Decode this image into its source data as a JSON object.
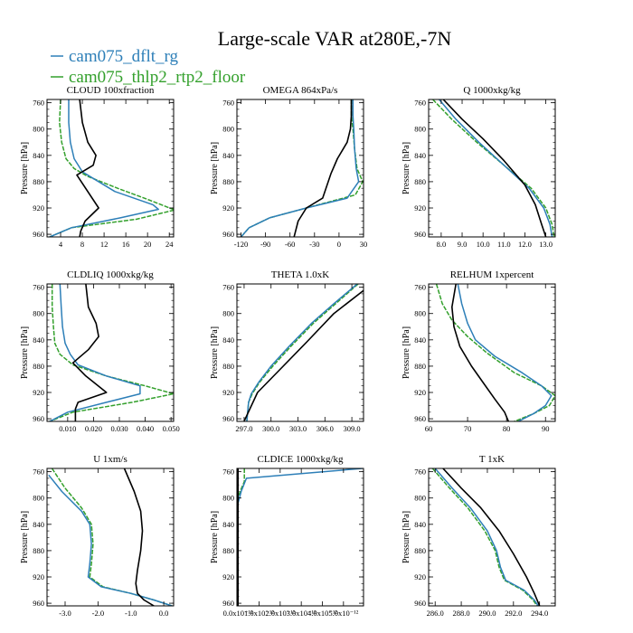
{
  "title": "Large-scale VAR at280E,-7N",
  "legend": [
    {
      "label": "cam075_dflt_rg",
      "color": "#2d7fb8"
    },
    {
      "label": "cam075_thlp2_rtp2_floor",
      "color": "#33a02c"
    }
  ],
  "colors": {
    "observed": "#000000",
    "dflt": "#2d7fb8",
    "thlp2": "#33a02c"
  },
  "chart_data": [
    {
      "type": "line",
      "title": "CLOUD  100xfraction",
      "ylabel": "Pressure [hPa]",
      "xlim": [
        1.5,
        24.8
      ],
      "ylim": [
        964,
        755
      ],
      "ylog": false,
      "xticks": [
        4,
        8,
        12,
        16,
        20,
        24
      ],
      "xtick_labels": [
        "4",
        "8",
        "12",
        "16",
        "20",
        "24"
      ],
      "yticks": [
        760,
        800,
        840,
        880,
        920,
        960
      ],
      "ytick_labels": [
        "760",
        "800",
        "840",
        "880",
        "920",
        "960"
      ],
      "series": [
        {
          "key": "observed",
          "x": [
            7.5,
            8.0,
            9.0,
            10.5,
            10.0,
            7.0,
            11.0,
            8.5,
            7.7,
            7.5
          ],
          "y": [
            755,
            790,
            820,
            840,
            855,
            870,
            920,
            940,
            955,
            964
          ]
        },
        {
          "key": "dflt",
          "x": [
            5.5,
            5.5,
            5.8,
            6.5,
            8.0,
            10.0,
            14.0,
            21.0,
            22.0,
            15.0,
            6.0,
            2.0
          ],
          "y": [
            755,
            790,
            820,
            845,
            865,
            875,
            895,
            915,
            922,
            935,
            950,
            964
          ]
        },
        {
          "key": "thlp2",
          "x": [
            4.0,
            3.8,
            4.2,
            5.0,
            6.5,
            9.0,
            14.5,
            20.0,
            25.0,
            18.0,
            6.0,
            2.0
          ],
          "y": [
            755,
            790,
            820,
            845,
            860,
            872,
            890,
            907,
            923,
            937,
            950,
            964
          ]
        }
      ]
    },
    {
      "type": "line",
      "title": "OMEGA  864xPa/s",
      "ylabel": "Pressure [hPa]",
      "xlim": [
        -125,
        30
      ],
      "ylim": [
        964,
        755
      ],
      "ylog": false,
      "xticks": [
        -120,
        -90,
        -60,
        -30,
        0,
        30
      ],
      "xtick_labels": [
        "-120",
        "-90",
        "-60",
        "-30",
        "0",
        "30"
      ],
      "yticks": [
        760,
        800,
        840,
        880,
        920,
        960
      ],
      "ytick_labels": [
        "760",
        "800",
        "840",
        "880",
        "920",
        "960"
      ],
      "series": [
        {
          "key": "observed",
          "x": [
            15.0,
            15.0,
            14.0,
            10.0,
            -2.0,
            -10.0,
            -20.0,
            -40.0,
            -50.0,
            -55.0
          ],
          "y": [
            755,
            780,
            800,
            820,
            845,
            868,
            905,
            920,
            940,
            964
          ]
        },
        {
          "key": "dflt",
          "x": [
            17.0,
            17.0,
            18.0,
            19.0,
            21.0,
            24.0,
            10.0,
            -40.0,
            -85.0,
            -110.0,
            -120.0
          ],
          "y": [
            755,
            780,
            800,
            830,
            860,
            880,
            905,
            920,
            935,
            950,
            964
          ]
        },
        {
          "key": "thlp2",
          "x": [
            15.0,
            15.0,
            17.0,
            19.0,
            22.0,
            29.0,
            20.0,
            -40.0,
            -85.0,
            -110.0,
            -120.0
          ],
          "y": [
            755,
            780,
            800,
            830,
            860,
            880,
            900,
            920,
            935,
            950,
            964
          ]
        }
      ]
    },
    {
      "type": "line",
      "title": "Q  1000xkg/kg",
      "ylabel": "Pressure [hPa]",
      "xlim": [
        7.4,
        13.45
      ],
      "ylim": [
        964,
        755
      ],
      "ylog": false,
      "xticks": [
        8.0,
        9.0,
        10.0,
        11.0,
        12.0,
        13.0
      ],
      "xtick_labels": [
        "8.0",
        "9.0",
        "10.0",
        "11.0",
        "12.0",
        "13.0"
      ],
      "yticks": [
        760,
        800,
        840,
        880,
        920,
        960
      ],
      "ytick_labels": [
        "760",
        "800",
        "840",
        "880",
        "920",
        "960"
      ],
      "series": [
        {
          "key": "observed",
          "x": [
            8.1,
            9.0,
            10.0,
            11.0,
            12.0,
            12.5,
            12.8,
            13.0
          ],
          "y": [
            755,
            785,
            815,
            848,
            885,
            915,
            945,
            964
          ]
        },
        {
          "key": "dflt",
          "x": [
            7.9,
            8.7,
            9.8,
            11.0,
            12.2,
            12.9,
            13.2,
            13.3
          ],
          "y": [
            755,
            785,
            820,
            855,
            890,
            920,
            945,
            964
          ]
        },
        {
          "key": "thlp2",
          "x": [
            7.6,
            8.5,
            9.7,
            11.0,
            12.3,
            13.0,
            13.3,
            13.4
          ],
          "y": [
            755,
            785,
            820,
            855,
            890,
            920,
            945,
            964
          ]
        }
      ]
    },
    {
      "type": "line",
      "title": "CLDLIQ  1000xkg/kg",
      "ylabel": "Pressure [hPa]",
      "xlim": [
        0.002,
        0.051
      ],
      "ylim": [
        964,
        755
      ],
      "ylog": false,
      "xticks": [
        0.01,
        0.02,
        0.03,
        0.04,
        0.05
      ],
      "xtick_labels": [
        "0.010",
        "0.020",
        "0.030",
        "0.040",
        "0.050"
      ],
      "yticks": [
        760,
        800,
        840,
        880,
        920,
        960
      ],
      "ytick_labels": [
        "760",
        "800",
        "840",
        "880",
        "920",
        "960"
      ],
      "series": [
        {
          "key": "observed",
          "x": [
            0.017,
            0.018,
            0.021,
            0.022,
            0.018,
            0.012,
            0.017,
            0.025,
            0.014,
            0.013,
            0.013
          ],
          "y": [
            755,
            790,
            815,
            835,
            855,
            875,
            895,
            920,
            935,
            945,
            964
          ]
        },
        {
          "key": "dflt",
          "x": [
            0.007,
            0.0075,
            0.008,
            0.009,
            0.011,
            0.014,
            0.025,
            0.038,
            0.038,
            0.025,
            0.01,
            0.003
          ],
          "y": [
            755,
            790,
            820,
            845,
            862,
            878,
            895,
            910,
            922,
            935,
            950,
            964
          ]
        },
        {
          "key": "thlp2",
          "x": [
            0.004,
            0.004,
            0.0045,
            0.005,
            0.007,
            0.012,
            0.025,
            0.04,
            0.051,
            0.035,
            0.012,
            0.003
          ],
          "y": [
            755,
            790,
            820,
            845,
            862,
            878,
            895,
            910,
            922,
            935,
            950,
            964
          ]
        }
      ]
    },
    {
      "type": "line",
      "title": "THETA  1.0xK",
      "ylabel": "Pressure [hPa]",
      "xlim": [
        296.2,
        310.3
      ],
      "ylim": [
        964,
        755
      ],
      "ylog": false,
      "xticks": [
        297.0,
        300.0,
        303.0,
        306.0,
        309.0
      ],
      "xtick_labels": [
        "297.0",
        "300.0",
        "303.0",
        "306.0",
        "309.0"
      ],
      "yticks": [
        760,
        800,
        840,
        880,
        920,
        960
      ],
      "ytick_labels": [
        "760",
        "800",
        "840",
        "880",
        "920",
        "960"
      ],
      "series": [
        {
          "key": "observed",
          "x": [
            310.3,
            307.0,
            304.0,
            301.0,
            298.5,
            297.0
          ],
          "y": [
            765,
            800,
            843,
            885,
            920,
            964
          ]
        },
        {
          "key": "dflt",
          "x": [
            309.6,
            307.0,
            304.5,
            302.0,
            300.0,
            298.6,
            297.8,
            297.5,
            297.4,
            297.3
          ],
          "y": [
            755,
            785,
            815,
            850,
            880,
            905,
            922,
            935,
            950,
            964
          ]
        },
        {
          "key": "thlp2",
          "x": [
            309.7,
            307.2,
            304.7,
            302.2,
            300.2,
            298.7,
            297.9,
            297.5,
            297.4,
            297.3
          ],
          "y": [
            755,
            785,
            815,
            850,
            880,
            905,
            922,
            935,
            950,
            964
          ]
        }
      ]
    },
    {
      "type": "line",
      "title": "RELHUM  1xpercent",
      "ylabel": "Pressure [hPa]",
      "xlim": [
        60,
        92.5
      ],
      "ylim": [
        964,
        755
      ],
      "ylog": false,
      "xticks": [
        60,
        70,
        80,
        90
      ],
      "xtick_labels": [
        "60",
        "70",
        "80",
        "90"
      ],
      "yticks": [
        760,
        800,
        840,
        880,
        920,
        960
      ],
      "ytick_labels": [
        "760",
        "800",
        "840",
        "880",
        "920",
        "960"
      ],
      "series": [
        {
          "key": "observed",
          "x": [
            67.0,
            66.0,
            66.5,
            68.0,
            71.0,
            74.0,
            77.0,
            79.5,
            80.5
          ],
          "y": [
            755,
            790,
            820,
            850,
            880,
            905,
            930,
            950,
            964
          ]
        },
        {
          "key": "dflt",
          "x": [
            67.5,
            68.5,
            70.0,
            72.0,
            77.0,
            84.0,
            89.0,
            91.5,
            90.0,
            87.0,
            83.0
          ],
          "y": [
            755,
            785,
            815,
            840,
            865,
            890,
            910,
            925,
            940,
            952,
            964
          ]
        },
        {
          "key": "thlp2",
          "x": [
            62.0,
            63.5,
            66.0,
            70.0,
            75.0,
            82.0,
            89.0,
            92.5,
            91.0,
            87.0,
            82.0
          ],
          "y": [
            755,
            785,
            810,
            835,
            860,
            890,
            910,
            925,
            940,
            952,
            964
          ]
        }
      ]
    },
    {
      "type": "line",
      "title": "U  1xm/s",
      "ylabel": "Pressure [hPa]",
      "xlim": [
        -3.55,
        0.3
      ],
      "ylim": [
        964,
        755
      ],
      "ylog": false,
      "xticks": [
        -3.0,
        -2.0,
        -1.0,
        0.0
      ],
      "xtick_labels": [
        "-3.0",
        "-2.0",
        "-1.0",
        "0.0"
      ],
      "yticks": [
        760,
        800,
        840,
        880,
        920,
        960
      ],
      "ytick_labels": [
        "760",
        "800",
        "840",
        "880",
        "920",
        "960"
      ],
      "series": [
        {
          "key": "observed",
          "x": [
            -1.2,
            -0.9,
            -0.7,
            -0.65,
            -0.7,
            -0.8,
            -0.85,
            -0.8,
            -0.6,
            -0.3
          ],
          "y": [
            755,
            790,
            820,
            850,
            880,
            910,
            930,
            945,
            955,
            964
          ]
        },
        {
          "key": "dflt",
          "x": [
            -3.5,
            -3.1,
            -2.5,
            -2.25,
            -2.2,
            -2.25,
            -2.3,
            -1.9,
            -1.0,
            -0.3,
            0.25
          ],
          "y": [
            765,
            790,
            820,
            840,
            870,
            900,
            920,
            935,
            945,
            955,
            964
          ]
        },
        {
          "key": "thlp2",
          "x": [
            -3.4,
            -3.0,
            -2.5,
            -2.2,
            -2.15,
            -2.2,
            -2.25,
            -1.85,
            -1.0,
            -0.3,
            0.25
          ],
          "y": [
            755,
            785,
            815,
            840,
            870,
            900,
            920,
            935,
            945,
            955,
            964
          ]
        }
      ]
    },
    {
      "type": "line",
      "title": "CLDICE  1000xkg/kg",
      "ylabel": "Pressure [hPa]",
      "xlim": [
        -5e-14,
        5.95e-12
      ],
      "ylim": [
        964,
        755
      ],
      "ylog": false,
      "xticks": [
        0,
        1e-12,
        2e-12,
        3e-12,
        4e-12,
        5e-12
      ],
      "xtick_labels": [
        "0.0x10⁻¹²",
        "1.0x10⁻¹²",
        "2.0x10⁻¹²",
        "3.0x10⁻¹²",
        "4.0x10⁻¹²",
        "5.0x10⁻¹²"
      ],
      "yticks": [
        760,
        800,
        840,
        880,
        920,
        960
      ],
      "ytick_labels": [
        "760",
        "800",
        "840",
        "880",
        "920",
        "960"
      ],
      "series": [
        {
          "key": "observed",
          "x": [
            0,
            0
          ],
          "y": [
            755,
            964
          ]
        },
        {
          "key": "dflt",
          "x": [
            5.9e-12,
            4e-13,
            1.5e-13,
            0.0,
            0.0
          ],
          "y": [
            755,
            770,
            790,
            808,
            964
          ]
        },
        {
          "key": "thlp2",
          "x": [
            3e-13,
            3e-13,
            1e-13,
            0.0,
            0.0
          ],
          "y": [
            755,
            775,
            790,
            800,
            964
          ]
        }
      ]
    },
    {
      "type": "line",
      "title": "T  1xK",
      "ylabel": "Pressure [hPa]",
      "xlim": [
        285.5,
        295.2
      ],
      "ylim": [
        964,
        755
      ],
      "ylog": false,
      "xticks": [
        286.0,
        288.0,
        290.0,
        292.0,
        294.0
      ],
      "xtick_labels": [
        "286.0",
        "288.0",
        "290.0",
        "292.0",
        "294.0"
      ],
      "yticks": [
        760,
        800,
        840,
        880,
        920,
        960
      ],
      "ytick_labels": [
        "760",
        "800",
        "840",
        "880",
        "920",
        "960"
      ],
      "series": [
        {
          "key": "observed",
          "x": [
            286.6,
            288.0,
            289.5,
            290.9,
            292.0,
            293.0,
            293.6,
            294.0
          ],
          "y": [
            755,
            785,
            815,
            850,
            885,
            920,
            945,
            964
          ]
        },
        {
          "key": "dflt",
          "x": [
            286.0,
            287.3,
            288.7,
            290.0,
            290.7,
            291.0,
            291.4,
            292.8,
            293.6,
            293.9
          ],
          "y": [
            755,
            785,
            815,
            850,
            880,
            905,
            925,
            940,
            955,
            964
          ]
        },
        {
          "key": "thlp2",
          "x": [
            285.8,
            287.1,
            288.5,
            289.8,
            290.6,
            290.9,
            291.3,
            292.7,
            293.5,
            293.8
          ],
          "y": [
            755,
            785,
            815,
            850,
            880,
            905,
            925,
            940,
            955,
            964
          ]
        }
      ]
    }
  ]
}
